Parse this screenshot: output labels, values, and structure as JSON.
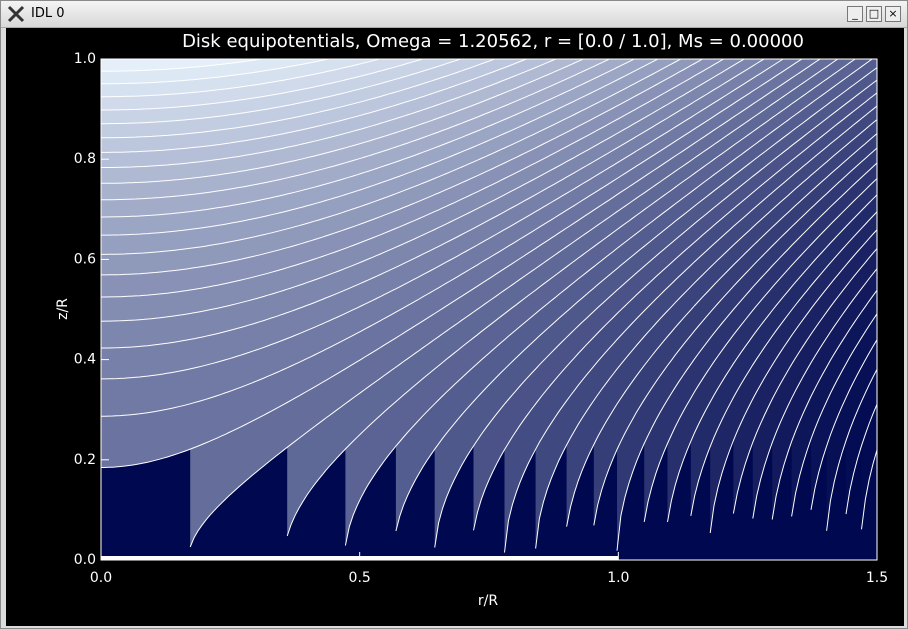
{
  "window": {
    "title": "IDL 0"
  },
  "chart_data": {
    "type": "contour",
    "title": "Disk equipotentials, Omega =  1.20562, r = [0.0 / 1.0], Ms =  0.00000",
    "x_label": "r/R",
    "y_label": "z/R",
    "xlim": [
      0,
      1.5
    ],
    "ylim": [
      0,
      1
    ],
    "xticks": [
      {
        "value": 0,
        "label": "0.0"
      },
      {
        "value": 0.5,
        "label": "0.5"
      },
      {
        "value": 1,
        "label": "1.0"
      },
      {
        "value": 1.5,
        "label": "1.5"
      }
    ],
    "yticks": [
      {
        "value": 0,
        "label": "0.0"
      },
      {
        "value": 0.2,
        "label": "0.2"
      },
      {
        "value": 0.4,
        "label": "0.4"
      },
      {
        "value": 0.6,
        "label": "0.6"
      },
      {
        "value": 0.8,
        "label": "0.8"
      },
      {
        "value": 1,
        "label": "1.0"
      }
    ]
  }
}
